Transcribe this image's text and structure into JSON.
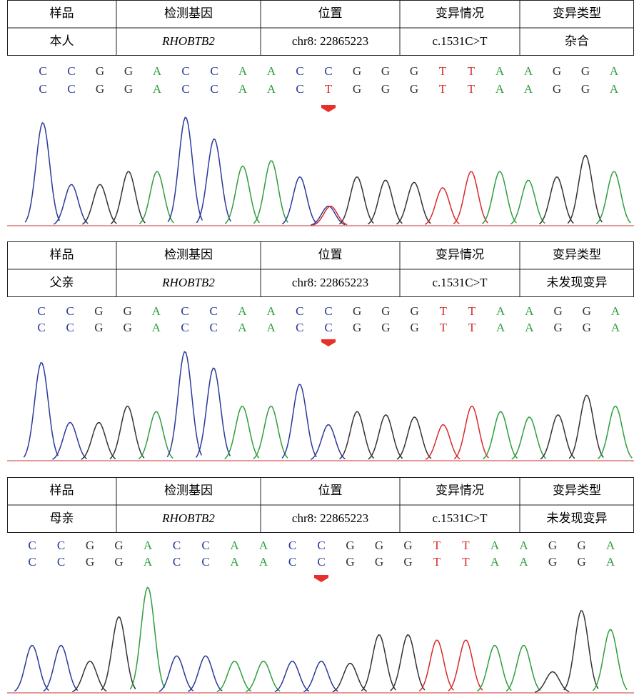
{
  "panels": [
    {
      "table": {
        "header": [
          "样品",
          "检测基因",
          "位置",
          "变异情况",
          "变异类型"
        ],
        "row": [
          "本人",
          "RHOBTB2",
          "chr8: 22865223",
          "c.1531C>T",
          "杂合"
        ]
      },
      "sequences": [
        [
          "C",
          "C",
          "G",
          "G",
          "A",
          "C",
          "C",
          "A",
          "A",
          "C",
          "C",
          "G",
          "G",
          "G",
          "T",
          "T",
          "A",
          "A",
          "G",
          "G",
          "A"
        ],
        [
          "C",
          "C",
          "G",
          "G",
          "A",
          "C",
          "C",
          "A",
          "A",
          "C",
          "T",
          "G",
          "G",
          "G",
          "T",
          "T",
          "A",
          "A",
          "G",
          "G",
          "A"
        ]
      ]
    },
    {
      "table": {
        "header": [
          "样品",
          "检测基因",
          "位置",
          "变异情况",
          "变异类型"
        ],
        "row": [
          "父亲",
          "RHOBTB2",
          "chr8: 22865223",
          "c.1531C>T",
          "未发现变异"
        ]
      },
      "sequences": [
        [
          "C",
          "C",
          "G",
          "G",
          "A",
          "C",
          "C",
          "A",
          "A",
          "C",
          "C",
          "G",
          "G",
          "G",
          "T",
          "T",
          "A",
          "A",
          "G",
          "G",
          "A"
        ],
        [
          "C",
          "C",
          "G",
          "G",
          "A",
          "C",
          "C",
          "A",
          "A",
          "C",
          "C",
          "G",
          "G",
          "G",
          "T",
          "T",
          "A",
          "A",
          "G",
          "G",
          "A"
        ]
      ]
    },
    {
      "table": {
        "header": [
          "样品",
          "检测基因",
          "位置",
          "变异情况",
          "变异类型"
        ],
        "row": [
          "母亲",
          "RHOBTB2",
          "chr8: 22865223",
          "c.1531C>T",
          "未发现变异"
        ]
      },
      "sequences": [
        [
          "C",
          "C",
          "G",
          "G",
          "A",
          "C",
          "C",
          "A",
          "A",
          "C",
          "C",
          "G",
          "G",
          "G",
          "T",
          "T",
          "A",
          "A",
          "G",
          "G",
          "A"
        ],
        [
          "C",
          "C",
          "G",
          "G",
          "A",
          "C",
          "C",
          "A",
          "A",
          "C",
          "C",
          "G",
          "G",
          "G",
          "T",
          "T",
          "A",
          "A",
          "G",
          "G",
          "A"
        ]
      ]
    }
  ]
}
